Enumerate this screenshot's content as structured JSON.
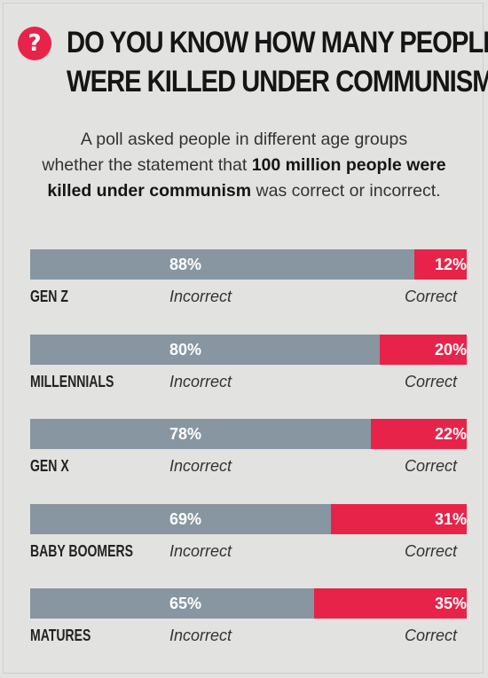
{
  "header": {
    "icon": "question-mark-icon",
    "icon_glyph": "?",
    "title_line1": "DO YOU KNOW HOW MANY PEOPLE",
    "title_line2": "WERE KILLED UNDER COMMUNISM?"
  },
  "subtitle": {
    "part1": "A poll asked people in different age groups",
    "part2": "whether the statement that ",
    "bold": "100 million people were killed under communism",
    "part3": " was correct or incorrect."
  },
  "colors": {
    "incorrect": "#8796a1",
    "correct": "#e8234a",
    "background": "#e2e2e0"
  },
  "chart_data": {
    "type": "bar",
    "orientation": "horizontal",
    "stacked": true,
    "categories": [
      "GEN Z",
      "MILLENNIALS",
      "GEN X",
      "BABY BOOMERS",
      "MATURES"
    ],
    "series": [
      {
        "name": "Incorrect",
        "values": [
          88,
          80,
          78,
          69,
          65
        ],
        "labels": [
          "88%",
          "80%",
          "78%",
          "69%",
          "65%"
        ]
      },
      {
        "name": "Correct",
        "values": [
          12,
          20,
          22,
          31,
          35
        ],
        "labels": [
          "12%",
          "20%",
          "22%",
          "31%",
          "35%"
        ]
      }
    ],
    "xlim": [
      0,
      100
    ],
    "grid": false
  }
}
